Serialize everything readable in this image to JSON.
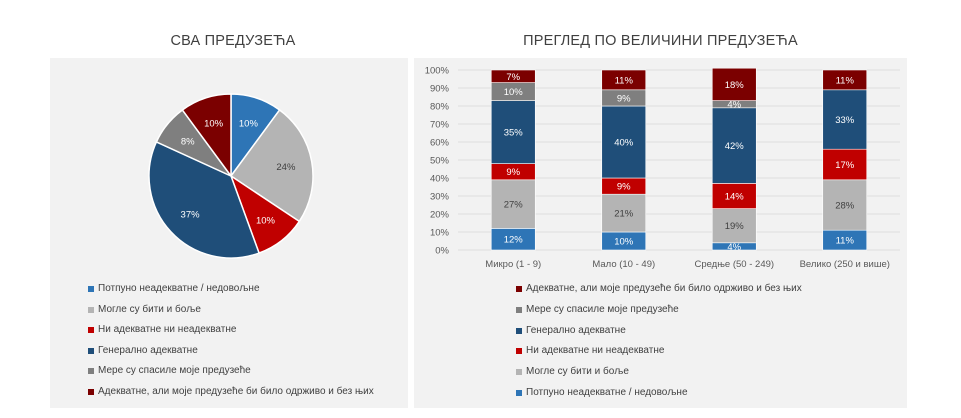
{
  "chart_data": [
    {
      "type": "pie",
      "title": "СВА ПРЕДУЗЕЋА",
      "categories": [
        "Потпуно неадекватне / недовољне",
        "Могле су бити и боље",
        "Ни адекватне ни неадекватне",
        "Генерално адекватне",
        "Мере су спасиле моје предузеће",
        "Адекватне, али моје предузеће би било одрживо и без њих"
      ],
      "values": [
        10,
        24,
        10,
        37,
        8,
        10
      ],
      "labels": [
        "10%",
        "24%",
        "10%",
        "37%",
        "8%",
        "10%"
      ],
      "colors": [
        "#2e75b6",
        "#b4b4b4",
        "#c00000",
        "#1f4e79",
        "#7f7f7f",
        "#7b0000"
      ],
      "legend": "bottom"
    },
    {
      "type": "bar",
      "stacked": true,
      "title": "ПРЕГЛЕД ПО ВЕЛИЧИНИ ПРЕДУЗЕЋА",
      "categories": [
        "Микро (1 - 9)",
        "Мало (10 - 49)",
        "Средње (50 - 249)",
        "Велико (250 и више)"
      ],
      "ylim": [
        0,
        100
      ],
      "yticks": [
        "0%",
        "10%",
        "20%",
        "30%",
        "40%",
        "50%",
        "60%",
        "70%",
        "80%",
        "90%",
        "100%"
      ],
      "series": [
        {
          "name": "Потпуно неадекватне / недовољне",
          "color": "#2e75b6",
          "values": [
            12,
            10,
            4,
            11
          ],
          "labels": [
            "12%",
            "10%",
            "4%",
            "11%"
          ]
        },
        {
          "name": "Могле су бити и боље",
          "color": "#b4b4b4",
          "values": [
            27,
            21,
            19,
            28
          ],
          "labels": [
            "27%",
            "21%",
            "19%",
            "28%"
          ]
        },
        {
          "name": "Ни адекватне ни неадекватне",
          "color": "#c00000",
          "values": [
            9,
            9,
            14,
            17
          ],
          "labels": [
            "9%",
            "9%",
            "14%",
            "17%"
          ]
        },
        {
          "name": "Генерално адекватне",
          "color": "#1f4e79",
          "values": [
            35,
            40,
            42,
            33
          ],
          "labels": [
            "35%",
            "40%",
            "42%",
            "33%"
          ]
        },
        {
          "name": "Мере су спасиле моје предузеће",
          "color": "#7f7f7f",
          "values": [
            10,
            9,
            4,
            0
          ],
          "labels": [
            "10%",
            "9%",
            "4%",
            ""
          ]
        },
        {
          "name": "Адекватне, али моје предузеће би било одрживо и без њих",
          "color": "#7b0000",
          "values": [
            7,
            11,
            18,
            11
          ],
          "labels": [
            "7%",
            "11%",
            "18%",
            "11%"
          ]
        }
      ],
      "legend": "bottom"
    }
  ]
}
